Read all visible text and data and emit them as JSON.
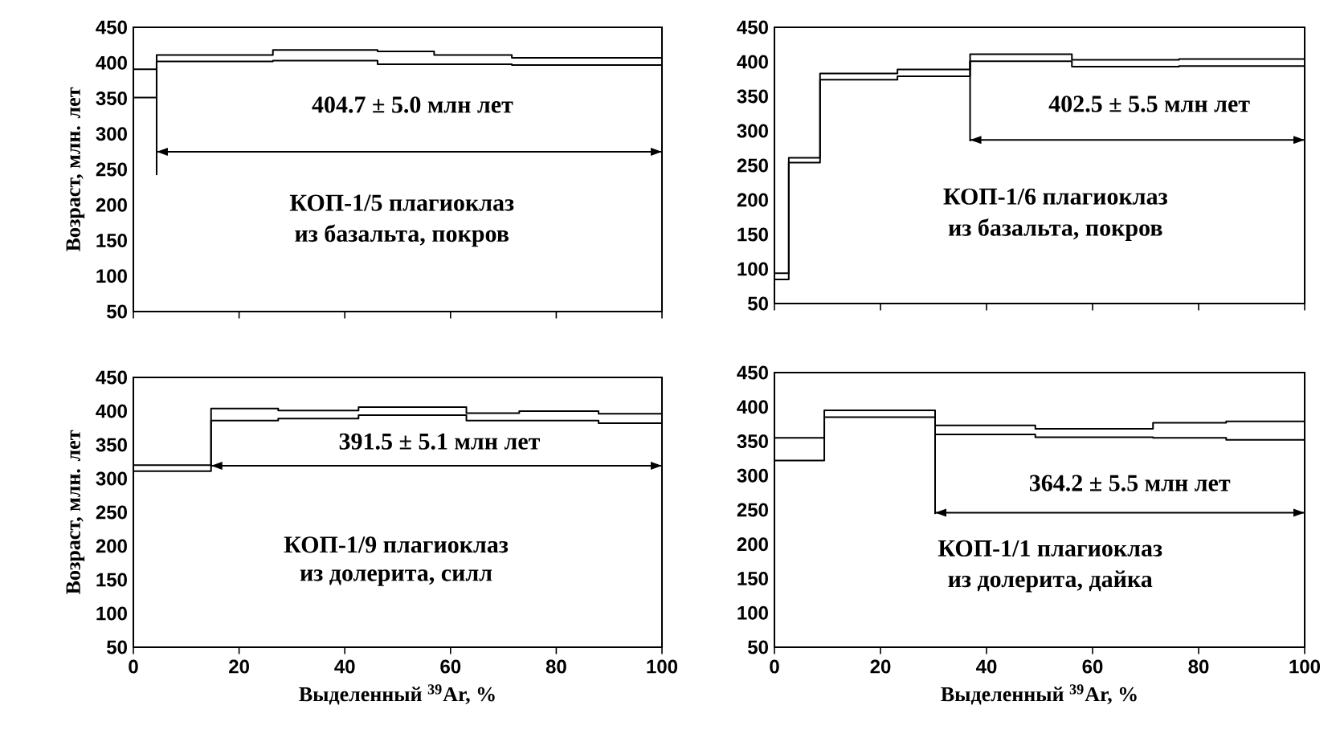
{
  "chart_data": [
    {
      "type": "step",
      "ylabel": "Возраст, млн. лет",
      "xlim": [
        0,
        100
      ],
      "ylim": [
        50,
        450
      ],
      "xticks": [
        0,
        20,
        40,
        60,
        80,
        100
      ],
      "yticks": [
        50,
        100,
        150,
        200,
        250,
        300,
        350,
        400,
        450
      ],
      "tick_labels": "y",
      "annotations": [
        "404.7 ± 5.0 млн лет",
        "КОП-1/5 плагиоклаз",
        "из базальта, покров"
      ],
      "series": [
        {
          "color": "#000000",
          "x": [
            0,
            4.4,
            26.4,
            46.2,
            56.9,
            71.6,
            100
          ],
          "values": [
            391,
            411,
            418,
            416,
            411,
            407,
            407
          ]
        },
        {
          "color": "#000000",
          "x": [
            0,
            4.4,
            26.4,
            46.2,
            56.9,
            71.6,
            100
          ],
          "values": [
            351,
            402,
            403,
            398,
            398,
            397,
            397
          ]
        },
        {
          "type": "line",
          "color": "#000000",
          "x": [
            4.4,
            100
          ],
          "values": [
            275,
            275
          ]
        },
        {
          "type": "line",
          "color": "#000000",
          "x": [
            4.4,
            4.4
          ],
          "values": [
            402,
            242
          ]
        }
      ]
    },
    {
      "type": "step",
      "xlim": [
        0,
        100
      ],
      "ylim": [
        50,
        450
      ],
      "xticks": [
        0,
        20,
        40,
        60,
        80,
        100
      ],
      "yticks": [
        50,
        100,
        150,
        200,
        250,
        300,
        350,
        400,
        450
      ],
      "tick_labels": "y",
      "annotations": [
        "402.5 ± 5.5 млн лет",
        "КОП-1/6  плагиоклаз",
        "из базальта, покров"
      ],
      "series": [
        {
          "color": "#000000",
          "x": [
            0,
            2.7,
            8.6,
            23.2,
            36.9,
            56.1,
            76.3,
            100
          ],
          "values": [
            94,
            261,
            383,
            389,
            411,
            403,
            404,
            404
          ]
        },
        {
          "color": "#000000",
          "x": [
            0,
            2.7,
            8.6,
            23.2,
            36.9,
            56.1,
            76.3,
            100
          ],
          "values": [
            85,
            254,
            374,
            379,
            401,
            393,
            394,
            394
          ]
        },
        {
          "type": "line",
          "color": "#000000",
          "x": [
            36.9,
            100
          ],
          "values": [
            287,
            287
          ]
        },
        {
          "type": "line",
          "color": "#000000",
          "x": [
            36.9,
            36.9
          ],
          "values": [
            401,
            285
          ]
        }
      ]
    },
    {
      "type": "step",
      "ylabel": "Возраст, млн. лет",
      "xlabel": "Выделенный $^{39}$Ar, %",
      "xlim": [
        0,
        100
      ],
      "ylim": [
        50,
        450
      ],
      "xticks": [
        0,
        20,
        40,
        60,
        80,
        100
      ],
      "yticks": [
        50,
        100,
        150,
        200,
        250,
        300,
        350,
        400,
        450
      ],
      "annotations": [
        "391.5 ± 5.1 млн лет",
        "КОП-1/9 плагиоклаз",
        "из долерита, силл"
      ],
      "series": [
        {
          "color": "#000000",
          "x": [
            0,
            14.7,
            27.4,
            42.6,
            63,
            73,
            88,
            100
          ],
          "values": [
            320,
            404,
            401,
            406,
            397,
            400,
            396,
            396
          ]
        },
        {
          "color": "#000000",
          "x": [
            0,
            14.7,
            27.4,
            42.6,
            63,
            73,
            88,
            100
          ],
          "values": [
            311,
            386,
            389,
            394,
            386,
            386,
            382,
            382
          ]
        },
        {
          "type": "line",
          "color": "#000000",
          "x": [
            14.7,
            100
          ],
          "values": [
            319,
            319
          ]
        }
      ]
    },
    {
      "type": "step",
      "xlabel": "Выделенный $^{39}$Ar, %",
      "xlim": [
        0,
        100
      ],
      "ylim": [
        50,
        450
      ],
      "xticks": [
        0,
        20,
        40,
        60,
        80,
        100
      ],
      "yticks": [
        50,
        100,
        150,
        200,
        250,
        300,
        350,
        400,
        450
      ],
      "annotations": [
        "364.2 ± 5.5 млн лет",
        "КОП-1/1 плагиоклаз",
        "из  долерита, дайка"
      ],
      "series": [
        {
          "color": "#000000",
          "x": [
            0,
            9.4,
            30.3,
            49.2,
            71.4,
            85.2,
            100
          ],
          "values": [
            355,
            395,
            373,
            368,
            377,
            379,
            379
          ]
        },
        {
          "color": "#000000",
          "x": [
            0,
            9.4,
            30.3,
            49.2,
            71.4,
            85.2,
            100
          ],
          "values": [
            322,
            385,
            360,
            356,
            355,
            352,
            352
          ]
        },
        {
          "type": "line",
          "color": "#000000",
          "x": [
            30.3,
            100
          ],
          "values": [
            246,
            246
          ]
        },
        {
          "type": "line",
          "color": "#000000",
          "x": [
            30.3,
            30.3
          ],
          "values": [
            360,
            244
          ]
        }
      ]
    }
  ]
}
